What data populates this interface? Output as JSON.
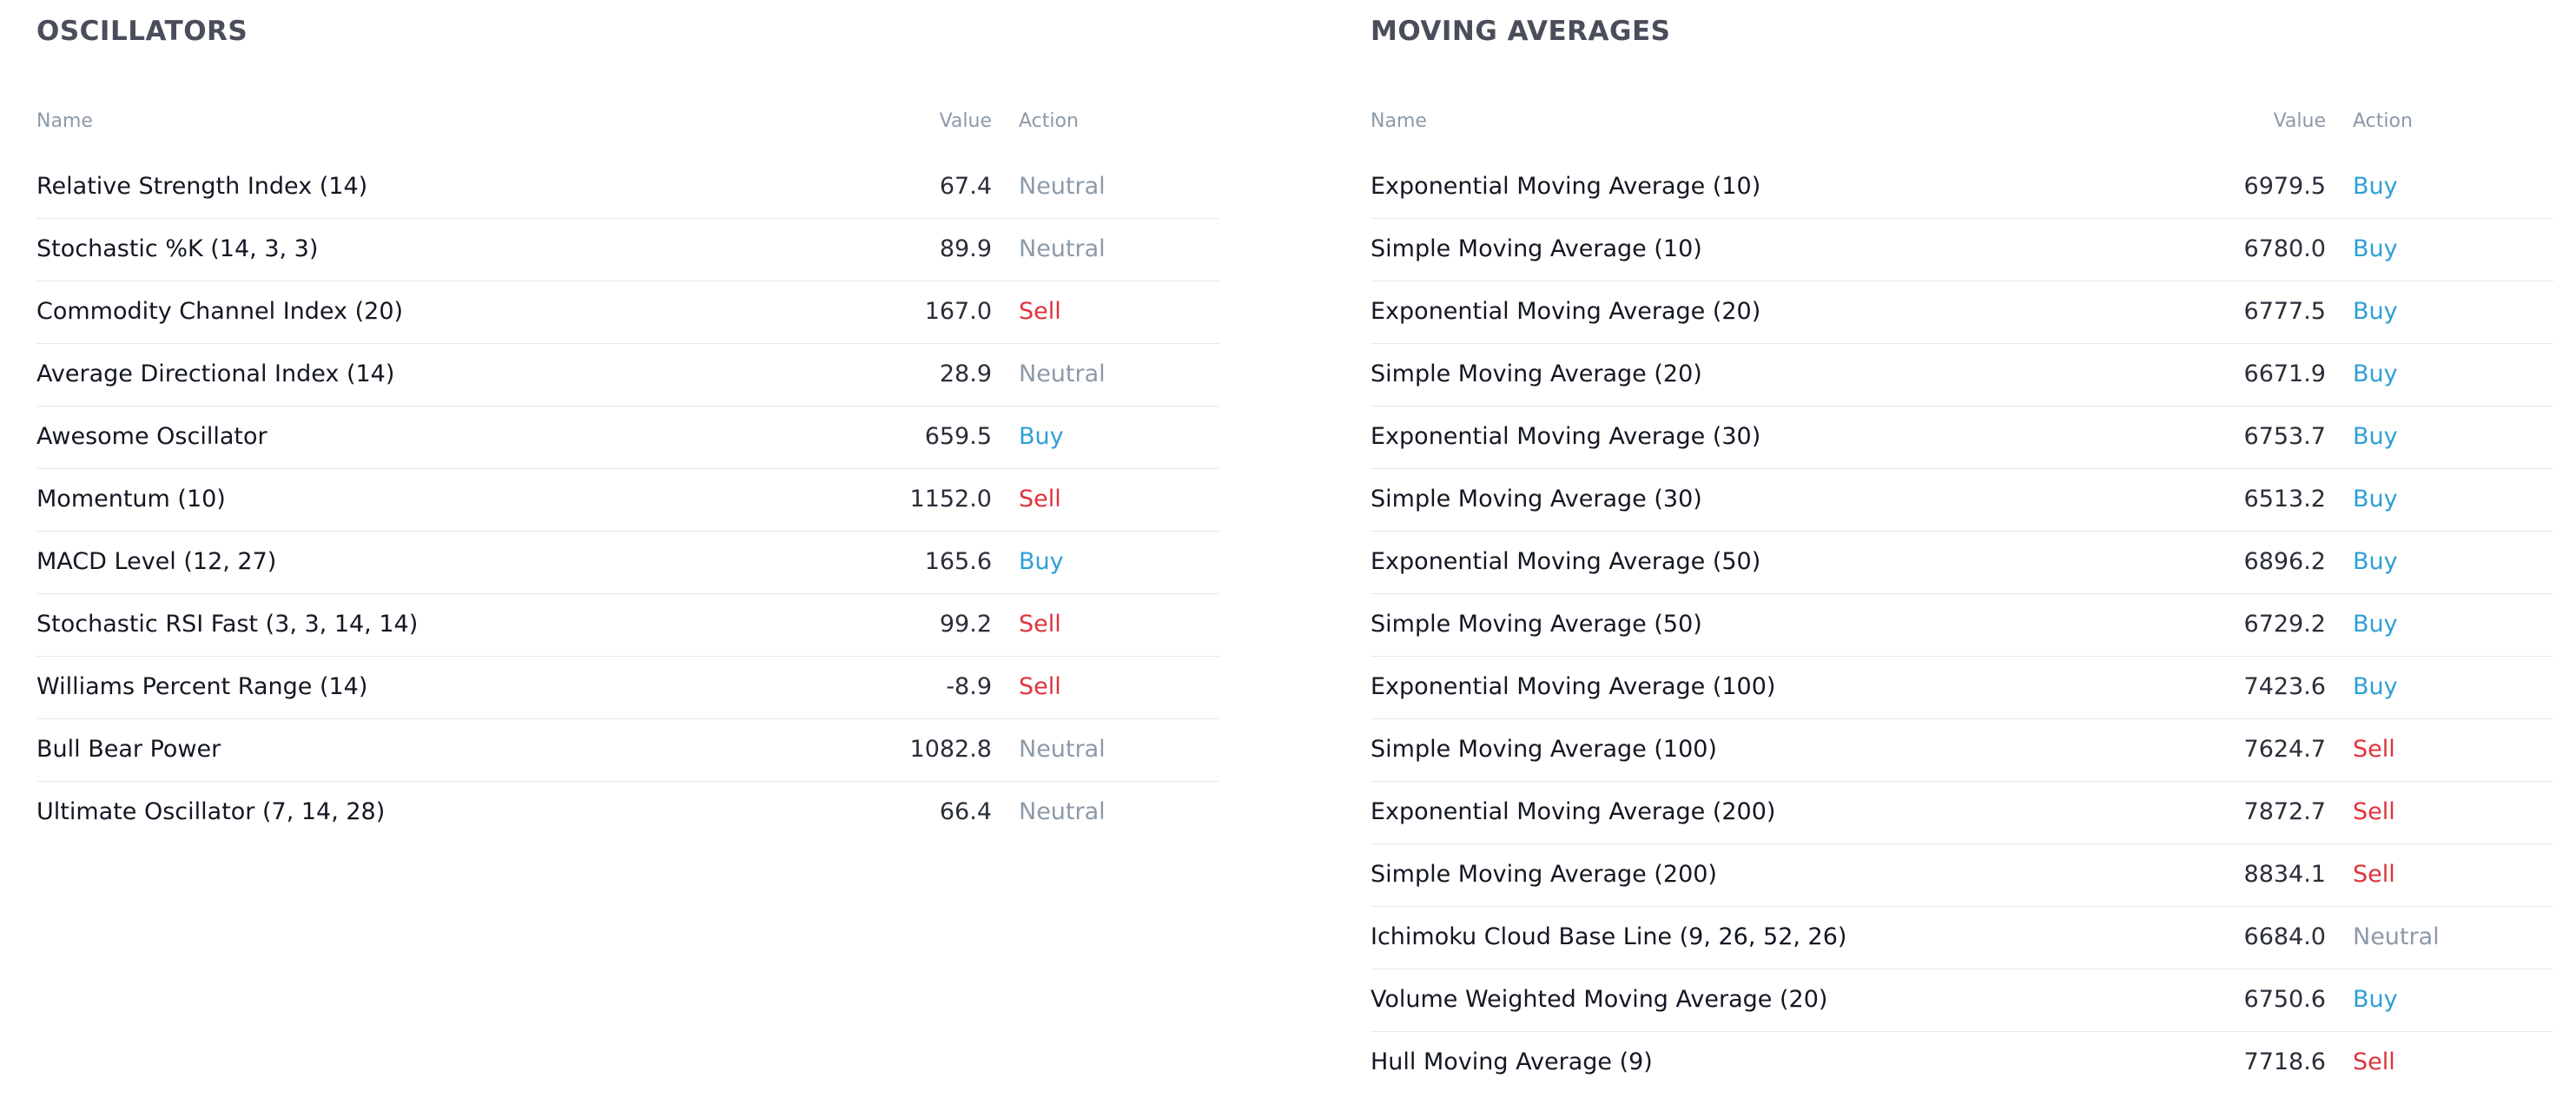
{
  "oscillators": {
    "title": "OSCILLATORS",
    "headers": {
      "name": "Name",
      "value": "Value",
      "action": "Action"
    },
    "rows": [
      {
        "name": "Relative Strength Index (14)",
        "value": "67.4",
        "action": "Neutral"
      },
      {
        "name": "Stochastic %K (14, 3, 3)",
        "value": "89.9",
        "action": "Neutral"
      },
      {
        "name": "Commodity Channel Index (20)",
        "value": "167.0",
        "action": "Sell"
      },
      {
        "name": "Average Directional Index (14)",
        "value": "28.9",
        "action": "Neutral"
      },
      {
        "name": "Awesome Oscillator",
        "value": "659.5",
        "action": "Buy"
      },
      {
        "name": "Momentum (10)",
        "value": "1152.0",
        "action": "Sell"
      },
      {
        "name": "MACD Level (12, 27)",
        "value": "165.6",
        "action": "Buy"
      },
      {
        "name": "Stochastic RSI Fast (3, 3, 14, 14)",
        "value": "99.2",
        "action": "Sell"
      },
      {
        "name": "Williams Percent Range (14)",
        "value": "-8.9",
        "action": "Sell"
      },
      {
        "name": "Bull Bear Power",
        "value": "1082.8",
        "action": "Neutral"
      },
      {
        "name": "Ultimate Oscillator (7, 14, 28)",
        "value": "66.4",
        "action": "Neutral"
      }
    ]
  },
  "moving_averages": {
    "title": "MOVING AVERAGES",
    "headers": {
      "name": "Name",
      "value": "Value",
      "action": "Action"
    },
    "rows": [
      {
        "name": "Exponential Moving Average (10)",
        "value": "6979.5",
        "action": "Buy"
      },
      {
        "name": "Simple Moving Average (10)",
        "value": "6780.0",
        "action": "Buy"
      },
      {
        "name": "Exponential Moving Average (20)",
        "value": "6777.5",
        "action": "Buy"
      },
      {
        "name": "Simple Moving Average (20)",
        "value": "6671.9",
        "action": "Buy"
      },
      {
        "name": "Exponential Moving Average (30)",
        "value": "6753.7",
        "action": "Buy"
      },
      {
        "name": "Simple Moving Average (30)",
        "value": "6513.2",
        "action": "Buy"
      },
      {
        "name": "Exponential Moving Average (50)",
        "value": "6896.2",
        "action": "Buy"
      },
      {
        "name": "Simple Moving Average (50)",
        "value": "6729.2",
        "action": "Buy"
      },
      {
        "name": "Exponential Moving Average (100)",
        "value": "7423.6",
        "action": "Buy"
      },
      {
        "name": "Simple Moving Average (100)",
        "value": "7624.7",
        "action": "Sell"
      },
      {
        "name": "Exponential Moving Average (200)",
        "value": "7872.7",
        "action": "Sell"
      },
      {
        "name": "Simple Moving Average (200)",
        "value": "8834.1",
        "action": "Sell"
      },
      {
        "name": "Ichimoku Cloud Base Line (9, 26, 52, 26)",
        "value": "6684.0",
        "action": "Neutral"
      },
      {
        "name": "Volume Weighted Moving Average (20)",
        "value": "6750.6",
        "action": "Buy"
      },
      {
        "name": "Hull Moving Average (9)",
        "value": "7718.6",
        "action": "Sell"
      }
    ]
  },
  "colors": {
    "buy": "#2e9fd6",
    "sell": "#e0323d",
    "neutral": "#8c9aa8",
    "title": "#4a4e5a",
    "divider": "#e6e8ec"
  }
}
